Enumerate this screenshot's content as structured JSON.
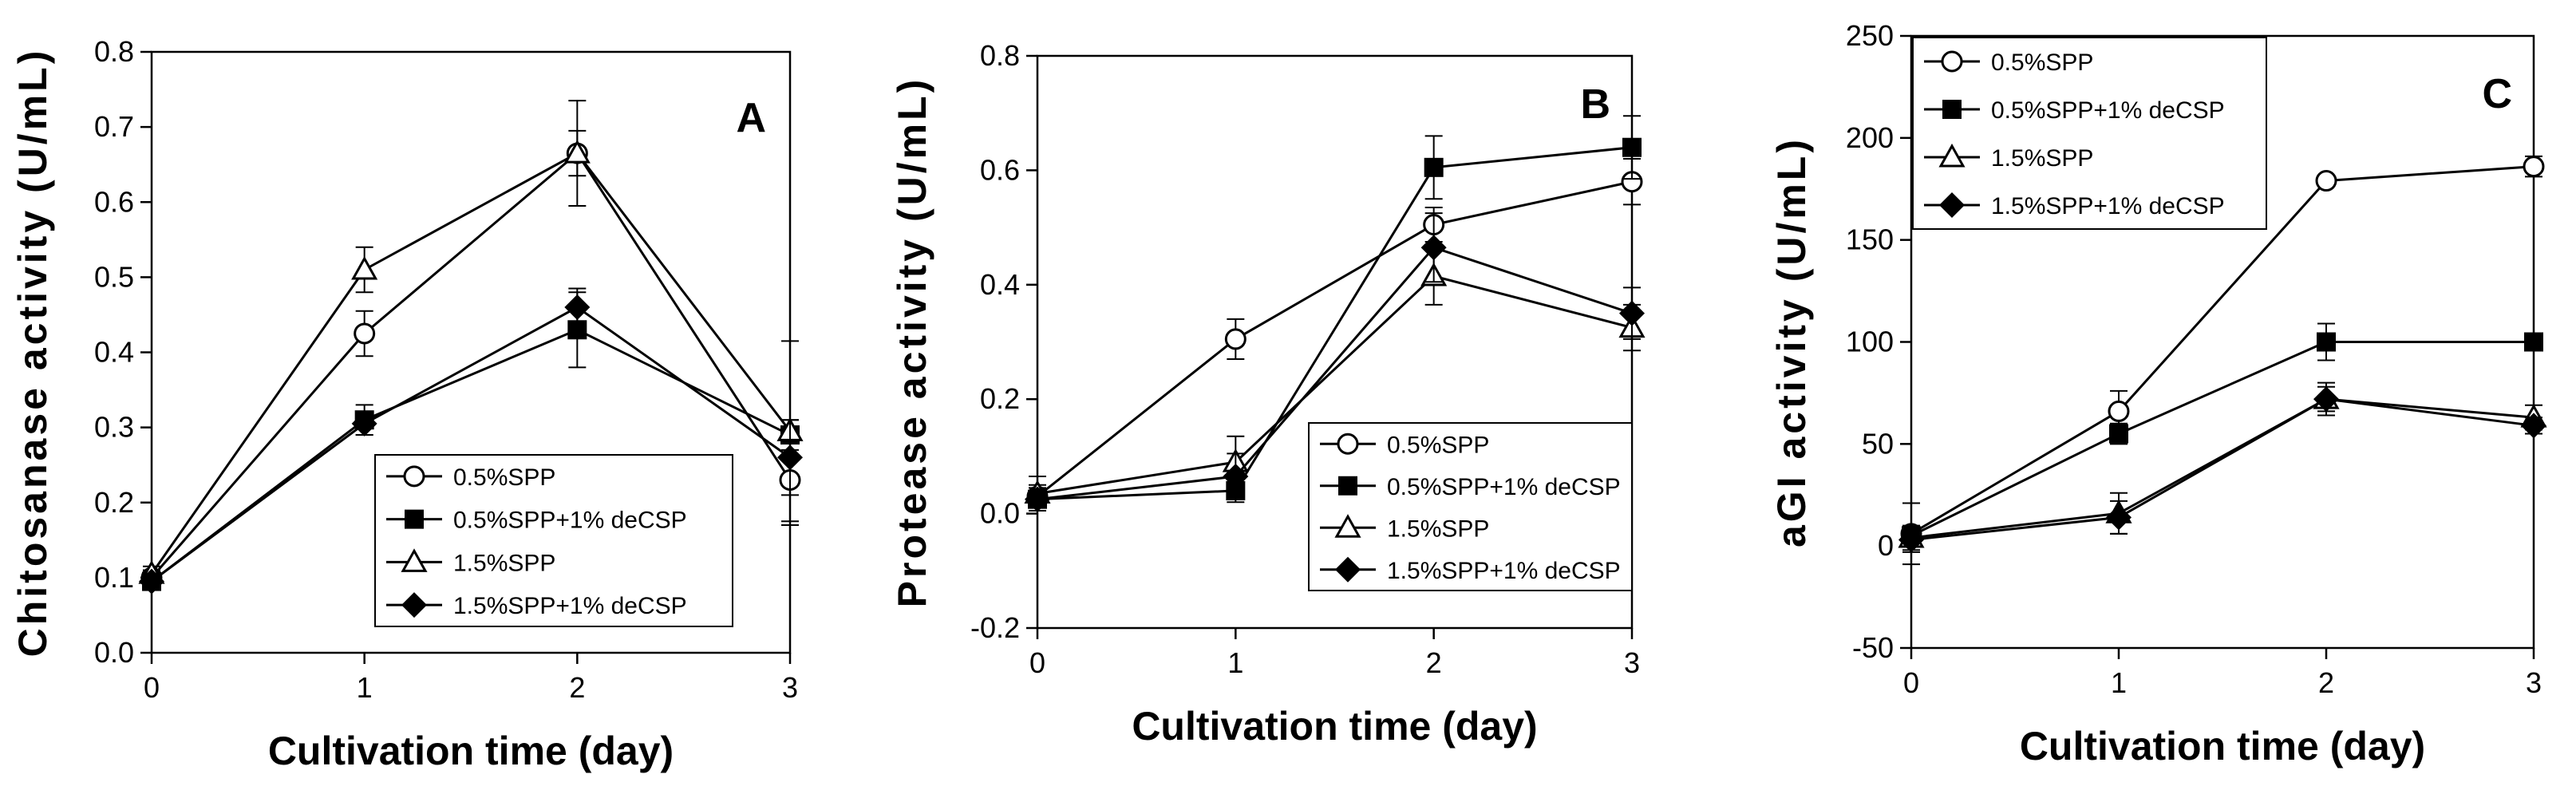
{
  "figure": {
    "panels": [
      "A",
      "B",
      "C"
    ]
  },
  "chart_data": [
    {
      "type": "line",
      "panel_label": "A",
      "xlabel": "Cultivation time (day)",
      "ylabel": "Chitosanase activity (U/mL)",
      "x": [
        0,
        1,
        2,
        3
      ],
      "xlim": [
        0,
        3
      ],
      "ylim": [
        0.0,
        0.8
      ],
      "xticks": [
        "0",
        "1",
        "2",
        "3"
      ],
      "yticks": [
        "0.0",
        "0.1",
        "0.2",
        "0.3",
        "0.4",
        "0.5",
        "0.6",
        "0.7",
        "0.8"
      ],
      "legend_position": "bottom-right",
      "series": [
        {
          "name": "0.5%SPP",
          "marker": "circle-open",
          "values": [
            0.1,
            0.425,
            0.665,
            0.23
          ],
          "errors": [
            0.01,
            0.03,
            0.07,
            0.06
          ]
        },
        {
          "name": "0.5%SPP+1% deCSP",
          "marker": "square-filled",
          "values": [
            0.095,
            0.31,
            0.43,
            0.29
          ],
          "errors": [
            0.01,
            0.02,
            0.05,
            0.02
          ]
        },
        {
          "name": "1.5%SPP",
          "marker": "triangle-open",
          "values": [
            0.105,
            0.51,
            0.665,
            0.295
          ],
          "errors": [
            0.01,
            0.03,
            0.03,
            0.12
          ]
        },
        {
          "name": "1.5%SPP+1% deCSP",
          "marker": "diamond-filled",
          "values": [
            0.095,
            0.305,
            0.46,
            0.26
          ],
          "errors": [
            0.01,
            0.015,
            0.025,
            0.05
          ]
        }
      ]
    },
    {
      "type": "line",
      "panel_label": "B",
      "xlabel": "Cultivation time (day)",
      "ylabel": "Protease activity (U/mL)",
      "x": [
        0,
        1,
        2,
        3
      ],
      "xlim": [
        0,
        3
      ],
      "ylim": [
        -0.2,
        0.8
      ],
      "xticks": [
        "0",
        "1",
        "2",
        "3"
      ],
      "yticks": [
        "-0.2",
        "0.0",
        "0.2",
        "0.4",
        "0.6",
        "0.8"
      ],
      "legend_position": "bottom-right",
      "series": [
        {
          "name": "0.5%SPP",
          "marker": "circle-open",
          "values": [
            0.03,
            0.305,
            0.505,
            0.58
          ],
          "errors": [
            0.02,
            0.035,
            0.03,
            0.04
          ]
        },
        {
          "name": "0.5%SPP+1% deCSP",
          "marker": "square-filled",
          "values": [
            0.025,
            0.04,
            0.605,
            0.64
          ],
          "errors": [
            0.02,
            0.02,
            0.055,
            0.055
          ]
        },
        {
          "name": "1.5%SPP",
          "marker": "triangle-open",
          "values": [
            0.035,
            0.09,
            0.415,
            0.325
          ],
          "errors": [
            0.03,
            0.045,
            0.05,
            0.04
          ]
        },
        {
          "name": "1.5%SPP+1% deCSP",
          "marker": "diamond-filled",
          "values": [
            0.025,
            0.065,
            0.465,
            0.35
          ],
          "errors": [
            0.015,
            0.04,
            0.06,
            0.045
          ]
        }
      ]
    },
    {
      "type": "line",
      "panel_label": "C",
      "xlabel": "Cultivation time (day)",
      "ylabel": "aGI activity (U/mL)",
      "x": [
        0,
        1,
        2,
        3
      ],
      "xlim": [
        0,
        3
      ],
      "ylim": [
        -50,
        250
      ],
      "xticks": [
        "0",
        "1",
        "2",
        "3"
      ],
      "yticks": [
        "-50",
        "0",
        "50",
        "100",
        "150",
        "200",
        "250"
      ],
      "legend_position": "top-left",
      "series": [
        {
          "name": "0.5%SPP",
          "marker": "circle-open",
          "values": [
            6,
            66,
            179,
            186
          ],
          "errors": [
            15,
            10,
            2,
            5
          ]
        },
        {
          "name": "0.5%SPP+1% deCSP",
          "marker": "square-filled",
          "values": [
            5,
            55,
            100,
            100
          ],
          "errors": [
            4,
            5,
            9,
            2
          ]
        },
        {
          "name": "1.5%SPP",
          "marker": "triangle-open",
          "values": [
            4,
            16,
            72,
            63
          ],
          "errors": [
            6,
            10,
            8,
            6
          ]
        },
        {
          "name": "1.5%SPP+1% deCSP",
          "marker": "diamond-filled",
          "values": [
            3,
            14,
            72,
            59
          ],
          "errors": [
            6,
            8,
            6,
            4
          ]
        }
      ]
    }
  ]
}
